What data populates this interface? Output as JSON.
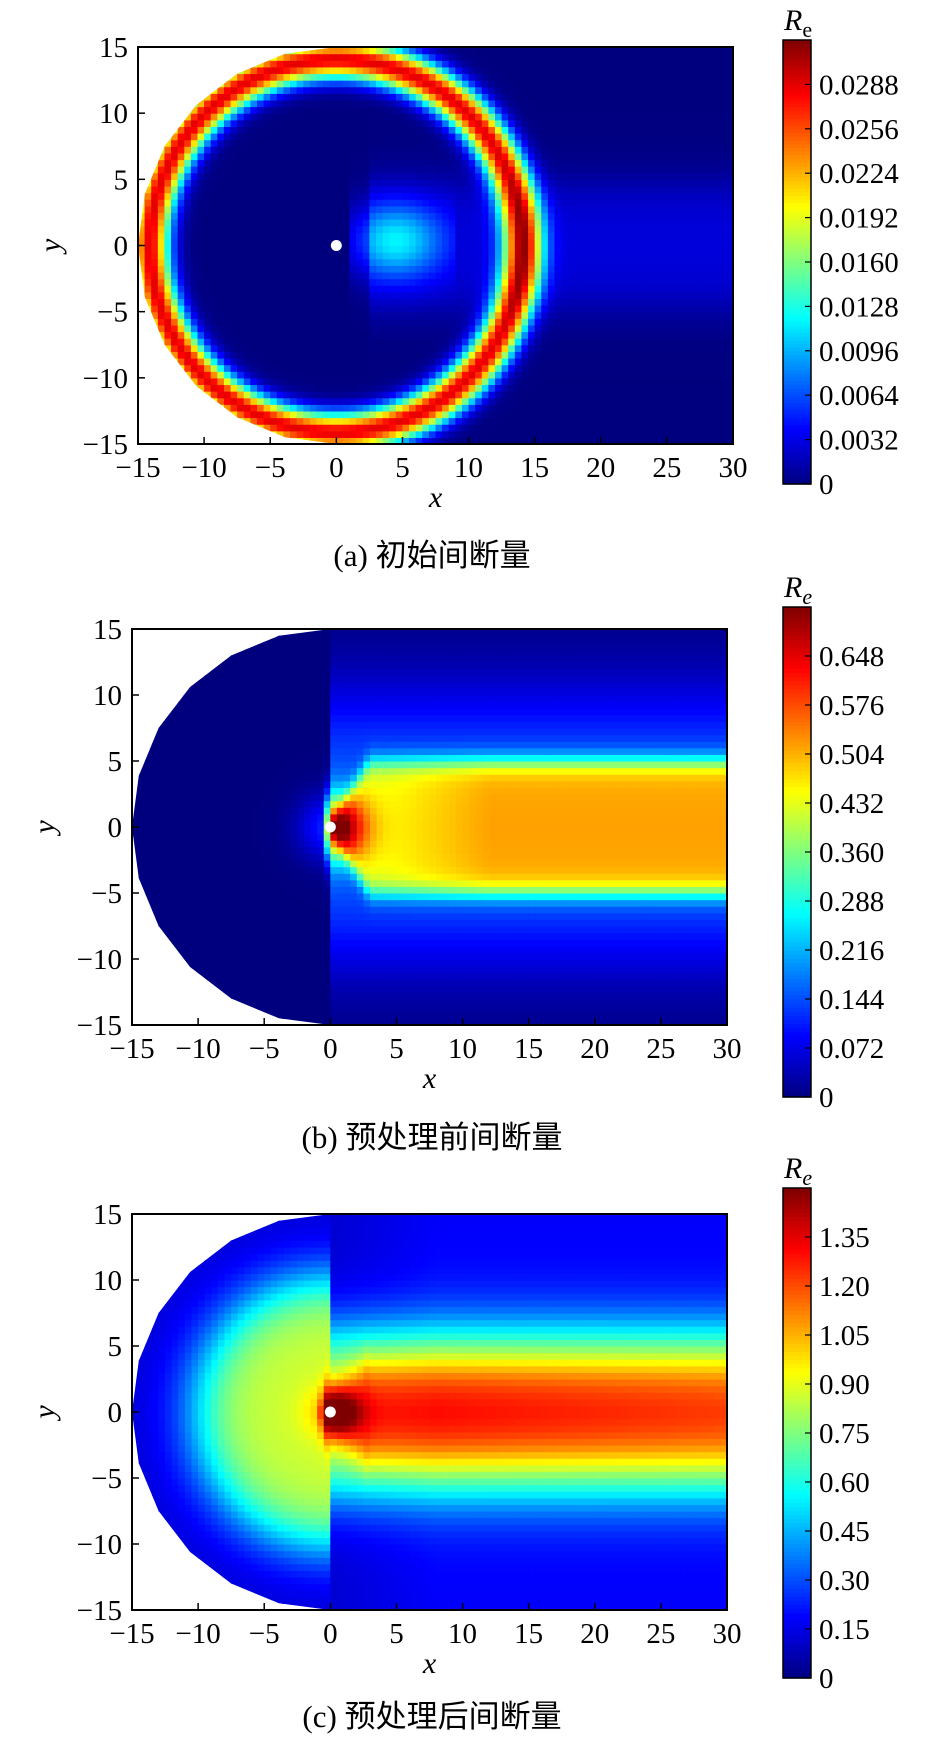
{
  "chart_data": [
    {
      "type": "heatmap",
      "id": "a",
      "caption": "(a) 初始间断量",
      "xlabel": "x",
      "ylabel": "y",
      "xlim": [
        -15,
        30
      ],
      "ylim": [
        -15,
        15
      ],
      "xticks": [
        "−15",
        "−10",
        "−5",
        "0",
        "5",
        "10",
        "15",
        "20",
        "25",
        "30"
      ],
      "xtick_values": [
        -15,
        -10,
        -5,
        0,
        5,
        10,
        15,
        20,
        25,
        30
      ],
      "yticks": [
        "15",
        "10",
        "5",
        "0",
        "−5",
        "−10",
        "−15"
      ],
      "ytick_values": [
        15,
        10,
        5,
        0,
        -5,
        -10,
        -15
      ],
      "colorbar": {
        "title": "R",
        "title_sub": "e",
        "sub_italic": false,
        "range": [
          0,
          0.032
        ],
        "ticks": [
          "0",
          "0.0032",
          "0.0064",
          "0.0096",
          "0.0128",
          "0.0160",
          "0.0192",
          "0.0224",
          "0.0256",
          "0.0288"
        ],
        "tick_values": [
          0,
          0.0032,
          0.0064,
          0.0096,
          0.0128,
          0.016,
          0.0192,
          0.0224,
          0.0256,
          0.0288
        ]
      },
      "field": {
        "type": "initial"
      }
    },
    {
      "type": "heatmap",
      "id": "b",
      "caption": "(b) 预处理前间断量",
      "xlabel": "x",
      "ylabel": "y",
      "xlim": [
        -15,
        30
      ],
      "ylim": [
        -15,
        15
      ],
      "xticks": [
        "−15",
        "−10",
        "−5",
        "0",
        "5",
        "10",
        "15",
        "20",
        "25",
        "30"
      ],
      "xtick_values": [
        -15,
        -10,
        -5,
        0,
        5,
        10,
        15,
        20,
        25,
        30
      ],
      "yticks": [
        "15",
        "10",
        "5",
        "0",
        "−5",
        "−10",
        "−15"
      ],
      "ytick_values": [
        15,
        10,
        5,
        0,
        -5,
        -10,
        -15
      ],
      "colorbar": {
        "title": "R",
        "title_sub": "e",
        "sub_italic": true,
        "range": [
          0,
          0.72
        ],
        "ticks": [
          "0",
          "0.072",
          "0.144",
          "0.216",
          "0.288",
          "0.360",
          "0.432",
          "0.504",
          "0.576",
          "0.648"
        ],
        "tick_values": [
          0,
          0.072,
          0.144,
          0.216,
          0.288,
          0.36,
          0.432,
          0.504,
          0.576,
          0.648
        ]
      },
      "field": {
        "type": "before"
      }
    },
    {
      "type": "heatmap",
      "id": "c",
      "caption": "(c) 预处理后间断量",
      "xlabel": "x",
      "ylabel": "y",
      "xlim": [
        -15,
        30
      ],
      "ylim": [
        -15,
        15
      ],
      "xticks": [
        "−15",
        "−10",
        "−5",
        "0",
        "5",
        "10",
        "15",
        "20",
        "25",
        "30"
      ],
      "xtick_values": [
        -15,
        -10,
        -5,
        0,
        5,
        10,
        15,
        20,
        25,
        30
      ],
      "yticks": [
        "15",
        "10",
        "5",
        "0",
        "−5",
        "−10",
        "−15"
      ],
      "ytick_values": [
        15,
        10,
        5,
        0,
        -5,
        -10,
        -15
      ],
      "colorbar": {
        "title": "R",
        "title_sub": "e",
        "sub_italic": true,
        "range": [
          0,
          1.5
        ],
        "ticks": [
          "0",
          "0.15",
          "0.30",
          "0.45",
          "0.60",
          "0.75",
          "0.90",
          "1.05",
          "1.20",
          "1.35"
        ],
        "tick_values": [
          0,
          0.15,
          0.3,
          0.45,
          0.6,
          0.75,
          0.9,
          1.05,
          1.2,
          1.35
        ]
      },
      "field": {
        "type": "after"
      }
    }
  ],
  "colors": {
    "colormap": [
      "#00007f",
      "#0000ff",
      "#007fff",
      "#00ffff",
      "#7fff7f",
      "#ffff00",
      "#ff7f00",
      "#ff0000",
      "#7f0000"
    ],
    "frame": "#000000",
    "marker": "#ffffff"
  }
}
